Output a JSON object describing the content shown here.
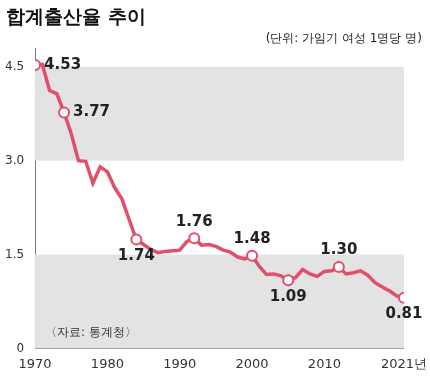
{
  "chart_data": {
    "type": "line",
    "title": "합계출산율 추이",
    "subtitle": "(단위: 가임기 여성 1명당 명)",
    "source": "〈자료: 통계청〉",
    "x": [
      1970,
      1971,
      1972,
      1973,
      1974,
      1975,
      1976,
      1977,
      1978,
      1979,
      1980,
      1981,
      1982,
      1983,
      1984,
      1985,
      1986,
      1987,
      1988,
      1989,
      1990,
      1991,
      1992,
      1993,
      1994,
      1995,
      1996,
      1997,
      1998,
      1999,
      2000,
      2001,
      2002,
      2003,
      2004,
      2005,
      2006,
      2007,
      2008,
      2009,
      2010,
      2011,
      2012,
      2013,
      2014,
      2015,
      2016,
      2017,
      2018,
      2019,
      2020,
      2021
    ],
    "values": [
      4.53,
      4.54,
      4.12,
      4.07,
      3.77,
      3.43,
      3.0,
      2.99,
      2.64,
      2.9,
      2.82,
      2.57,
      2.39,
      2.06,
      1.74,
      1.66,
      1.58,
      1.53,
      1.55,
      1.56,
      1.57,
      1.71,
      1.76,
      1.65,
      1.66,
      1.63,
      1.57,
      1.54,
      1.46,
      1.43,
      1.48,
      1.31,
      1.18,
      1.19,
      1.16,
      1.09,
      1.13,
      1.26,
      1.19,
      1.15,
      1.23,
      1.24,
      1.3,
      1.19,
      1.21,
      1.24,
      1.17,
      1.05,
      0.98,
      0.92,
      0.84,
      0.81
    ],
    "value_labels": [
      "4.53",
      null,
      null,
      null,
      "3.77",
      null,
      null,
      null,
      null,
      null,
      null,
      null,
      null,
      null,
      "1.74",
      null,
      null,
      null,
      null,
      null,
      null,
      null,
      "1.76",
      null,
      null,
      null,
      null,
      null,
      null,
      null,
      "1.48",
      null,
      null,
      null,
      null,
      "1.09",
      null,
      null,
      null,
      null,
      null,
      null,
      "1.30",
      null,
      null,
      null,
      null,
      null,
      null,
      null,
      null,
      "0.81"
    ],
    "data_labels": true,
    "color": "#e0506a",
    "marker": "circle",
    "xlim": [
      1970,
      2021
    ],
    "xticks": [
      1970,
      1980,
      1990,
      2000,
      2010,
      {
        "value": 2021,
        "label": "2021년"
      }
    ],
    "ylim": [
      0,
      4.8
    ],
    "yticks": [
      0,
      1.5,
      {
        "value": 3,
        "label": "3.0"
      },
      4.5
    ],
    "grid": false
  }
}
